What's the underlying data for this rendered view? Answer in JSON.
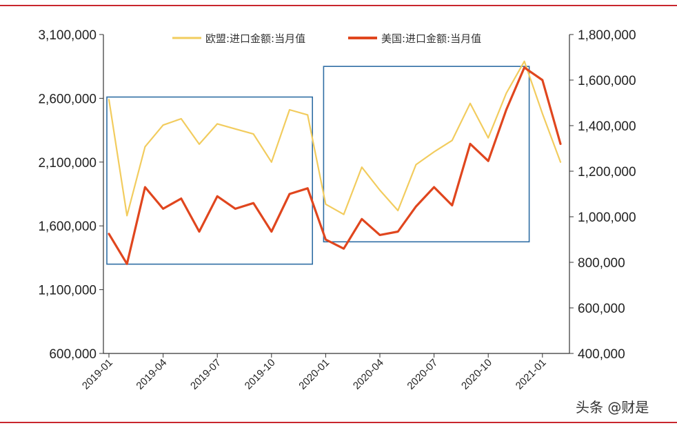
{
  "chart_data": {
    "type": "line",
    "title": "",
    "x": [
      "2019-01",
      "2019-02",
      "2019-03",
      "2019-04",
      "2019-05",
      "2019-06",
      "2019-07",
      "2019-08",
      "2019-09",
      "2019-10",
      "2019-11",
      "2019-12",
      "2020-01",
      "2020-02",
      "2020-03",
      "2020-04",
      "2020-05",
      "2020-06",
      "2020-07",
      "2020-08",
      "2020-09",
      "2020-10",
      "2020-11",
      "2020-12",
      "2021-01",
      "2021-02"
    ],
    "x_tick_labels": [
      "2019-01",
      "2019-04",
      "2019-07",
      "2019-10",
      "2020-01",
      "2020-04",
      "2020-07",
      "2020-10",
      "2021-01"
    ],
    "series": [
      {
        "name": "欧盟:进口金额:当月值",
        "axis": "left",
        "color": "#F2CC5E",
        "values": [
          2590000,
          1680000,
          2220000,
          2390000,
          2440000,
          2240000,
          2400000,
          2360000,
          2320000,
          2100000,
          2510000,
          2470000,
          1770000,
          1690000,
          2060000,
          1880000,
          1720000,
          2080000,
          2180000,
          2270000,
          2560000,
          2290000,
          2640000,
          2890000,
          2480000,
          2100000
        ]
      },
      {
        "name": "美国:进口金额:当月值",
        "axis": "right",
        "color": "#E0461E",
        "values": [
          925000,
          793000,
          1130000,
          1035000,
          1080000,
          935000,
          1090000,
          1035000,
          1060000,
          935000,
          1100000,
          1125000,
          900000,
          860000,
          990000,
          920000,
          935000,
          1045000,
          1130000,
          1050000,
          1320000,
          1245000,
          1470000,
          1655000,
          1600000,
          1320000
        ]
      }
    ],
    "y_left": {
      "ylim": [
        600000,
        3100000
      ],
      "ticks": [
        "3,100,000",
        "2,600,000",
        "2,100,000",
        "1,600,000",
        "1,100,000",
        "600,000"
      ]
    },
    "y_right": {
      "ylim": [
        400000,
        1800000
      ],
      "ticks": [
        "1,800,000",
        "1,600,000",
        "1,400,000",
        "1,200,000",
        "1,000,000",
        "800,000",
        "600,000",
        "400,000"
      ]
    },
    "legend_placement": "top-center",
    "annotations": [
      {
        "type": "rect",
        "color": "#2E6DA4",
        "from": "2019-01",
        "to": "2019-12",
        "y_left": [
          1300000,
          2610000
        ]
      },
      {
        "type": "rect",
        "color": "#2E6DA4",
        "from": "2020-01",
        "to": "2020-12",
        "y_left": [
          1475000,
          2850000
        ]
      }
    ],
    "grid": false
  },
  "watermark": "头条 @财是",
  "colors": {
    "frame_line": "#C8262D",
    "axis": "#333333"
  }
}
